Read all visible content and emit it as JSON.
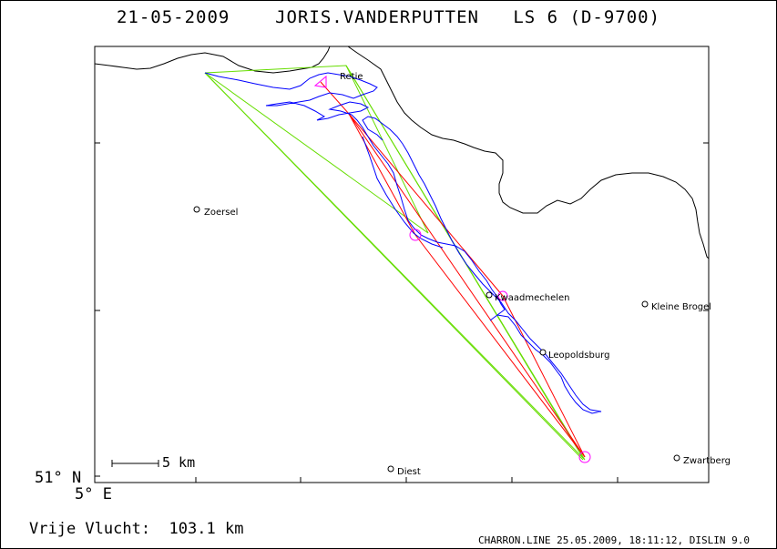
{
  "header": {
    "date": "21-05-2009",
    "pilot": "JORIS.VANDERPUTTEN",
    "glider": "LS 6 (D-9700)"
  },
  "map": {
    "places": [
      {
        "id": "zoersel",
        "name": "Zoersel"
      },
      {
        "id": "kwaadmechelen",
        "name": "Kwaadmechelen"
      },
      {
        "id": "kleine-brogel",
        "name": "Kleine Brogel"
      },
      {
        "id": "leopoldsburg",
        "name": "Leopoldsburg"
      },
      {
        "id": "diest",
        "name": "Diest"
      },
      {
        "id": "zwartberg",
        "name": "Zwartberg"
      },
      {
        "id": "retie",
        "name": "Retie"
      }
    ],
    "scale_label": "5 km",
    "lat_label": "51° N",
    "lon_label": "5° E",
    "colors": {
      "track": "#0000ff",
      "task": "#ff0000",
      "sectors": "#66dd00",
      "turnpoint": "#ff00ff",
      "border": "#000000"
    }
  },
  "footer": {
    "distance_label": "Vrije Vlucht:",
    "distance_value": "103.1 km",
    "software_info": "CHARRON.LINE 25.05.2009, 18:11:12, DISLIN 9.0"
  }
}
